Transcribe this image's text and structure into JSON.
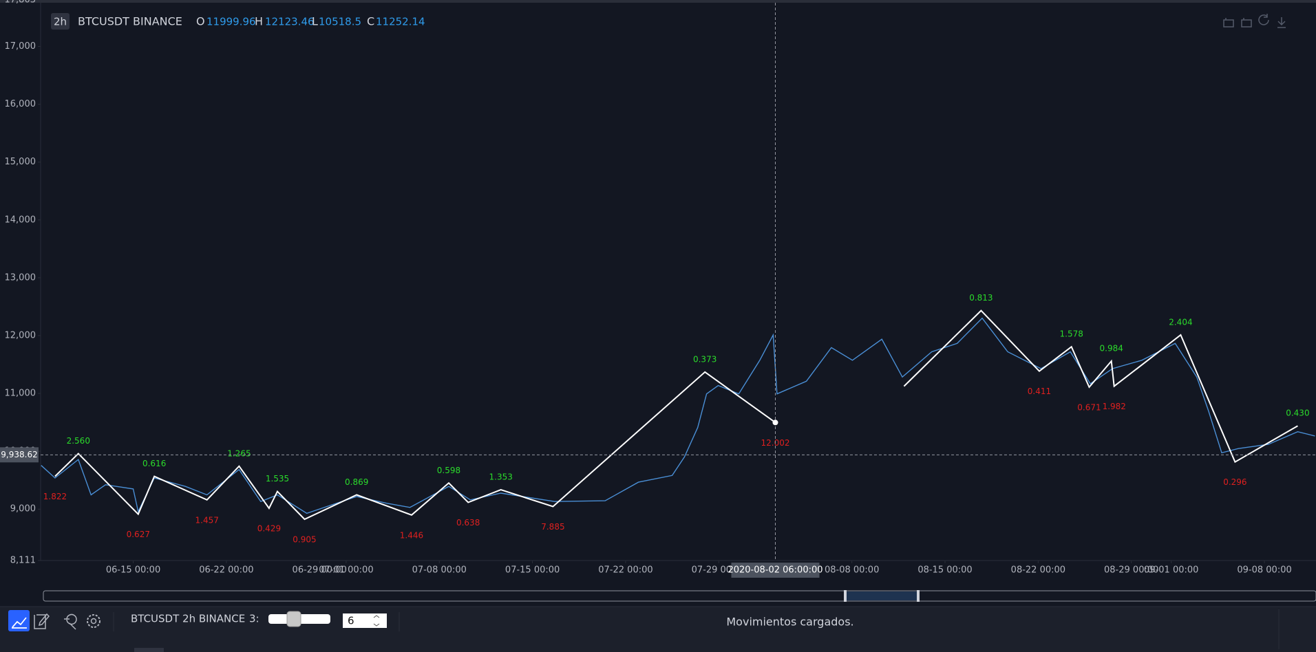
{
  "header": {
    "interval": "2h",
    "symbol": "BTCUSDT BINANCE",
    "ohlc": [
      {
        "key": "O",
        "value": 11999.96
      },
      {
        "key": "H",
        "value": 12123.46
      },
      {
        "key": "L",
        "value": 10518.5
      },
      {
        "key": "C",
        "value": 11252.14
      }
    ]
  },
  "chart_data": {
    "type": "line",
    "xlim": [
      "2020-06-08 01:00",
      "2020-09-11 21:00"
    ],
    "ylim": [
      8111,
      17803
    ],
    "xticks": [
      {
        "value": "2020-06-15 00:00",
        "label": "06-15 00:00"
      },
      {
        "value": "2020-06-22 00:00",
        "label": "06-22 00:00"
      },
      {
        "value": "2020-06-29 00:00",
        "label": "06-29 00:00"
      },
      {
        "value": "2020-07-01 00:00",
        "label": "07-01 00:00"
      },
      {
        "value": "2020-07-08 00:00",
        "label": "07-08 00:00"
      },
      {
        "value": "2020-07-15 00:00",
        "label": "07-15 00:00"
      },
      {
        "value": "2020-07-22 00:00",
        "label": "07-22 00:00"
      },
      {
        "value": "2020-07-29 00:00",
        "label": "07-29 00:00"
      },
      {
        "value": "2020-08-08 00:00",
        "label": "08-08 00:00"
      },
      {
        "value": "2020-08-15 00:00",
        "label": "08-15 00:00"
      },
      {
        "value": "2020-08-22 00:00",
        "label": "08-22 00:00"
      },
      {
        "value": "2020-08-29 00:00",
        "label": "08-29 00:00"
      },
      {
        "value": "2020-09-01 00:00",
        "label": "09-01 00:00"
      },
      {
        "value": "2020-09-08 00:00",
        "label": "09-08 00:00"
      }
    ],
    "yticks": [
      {
        "value": 8111,
        "label": "8,111"
      },
      {
        "value": 9000,
        "label": "9,000"
      },
      {
        "value": 10000,
        "label": "10,000"
      },
      {
        "value": 11000,
        "label": "11,000"
      },
      {
        "value": 12000,
        "label": "12,000"
      },
      {
        "value": 13000,
        "label": "13,000"
      },
      {
        "value": 14000,
        "label": "14,000"
      },
      {
        "value": 15000,
        "label": "15,000"
      },
      {
        "value": 16000,
        "label": "16,000"
      },
      {
        "value": 17000,
        "label": "17,000"
      },
      {
        "value": 17803,
        "label": "17,803"
      }
    ],
    "grid": false,
    "crosshair": {
      "x": "2020-08-02 06:00:00",
      "y": {
        "value": 9938.62,
        "label": "9,938.62"
      }
    },
    "series": [
      {
        "color": "#4a8fd6",
        "x": [
          "2020-06-08 02:00",
          "2020-06-09 03:00",
          "2020-06-10 21:00",
          "2020-06-11 20:00",
          "2020-06-12 22:00",
          "2020-06-15 00:00",
          "2020-06-15 09:00",
          "2020-06-16 14:00",
          "2020-06-18 22:00",
          "2020-06-20 13:00",
          "2020-06-22 23:00",
          "2020-06-24 14:00",
          "2020-06-25 20:00",
          "2020-06-28 01:00",
          "2020-07-01 19:00",
          "2020-07-04 01:00",
          "2020-07-05 19:00",
          "2020-07-08 17:00",
          "2020-07-10 08:00",
          "2020-07-12 15:00",
          "2020-07-16 16:00",
          "2020-07-20 11:00",
          "2020-07-22 23:00",
          "2020-07-25 12:00",
          "2020-07-26 10:00",
          "2020-07-27 10:00",
          "2020-07-28 02:00",
          "2020-07-28 23:00",
          "2020-07-30 12:00",
          "2020-08-01 02:00",
          "2020-08-02 02:00",
          "2020-08-02 09:00",
          "2020-08-04 14:00",
          "2020-08-06 11:00",
          "2020-08-08 01:00",
          "2020-08-10 06:00",
          "2020-08-11 19:00",
          "2020-08-14 00:00",
          "2020-08-15 22:00",
          "2020-08-17 19:00",
          "2020-08-19 17:00",
          "2020-08-22 05:00",
          "2020-08-24 10:00",
          "2020-08-25 22:00",
          "2020-08-27 14:00",
          "2020-08-29 19:00",
          "2020-09-01 07:00",
          "2020-09-02 22:00",
          "2020-09-03 19:00",
          "2020-09-04 19:00",
          "2020-09-06 01:00",
          "2020-09-08 07:00",
          "2020-09-10 12:00",
          "2020-09-11 19:00"
        ],
        "values": [
          9756,
          9538,
          9858,
          9247,
          9422,
          9349,
          8956,
          9538,
          9393,
          9247,
          9684,
          9131,
          9247,
          8927,
          9218,
          9102,
          9029,
          9393,
          9160,
          9276,
          9131,
          9145,
          9465,
          9582,
          9902,
          10411,
          10993,
          11138,
          10993,
          11574,
          12011,
          10993,
          11211,
          11793,
          11574,
          11938,
          11284,
          11720,
          11865,
          12302,
          11720,
          11429,
          11720,
          11167,
          11429,
          11574,
          11865,
          11284,
          10702,
          9975,
          10047,
          10120,
          10338,
          10265
        ]
      },
      {
        "color": "#ffffff",
        "x": [
          "2020-06-09 03:00",
          "2020-06-10 21:00",
          "2020-06-15 09:00",
          "2020-06-16 14:00",
          "2020-06-20 13:00",
          "2020-06-22 23:00",
          "2020-06-25 05:00",
          "2020-06-25 20:00",
          "2020-06-27 21:00",
          "2020-07-01 19:00",
          "2020-07-05 22:00",
          "2020-07-08 17:00",
          "2020-07-10 04:00",
          "2020-07-12 15:00",
          "2020-07-16 13:00",
          "2020-07-27 23:00",
          "2020-08-02 06:00",
          "2020-08-07 00:00",
          "2020-08-11 22:00",
          "2020-08-17 17:00",
          "2020-08-22 02:00",
          "2020-08-24 12:00",
          "2020-08-25 20:00",
          "2020-08-27 12:00",
          "2020-08-27 17:00",
          "2020-09-01 17:00",
          "2020-09-05 19:00",
          "2020-09-10 12:00"
        ],
        "values": [
          9567,
          9960,
          8913,
          9567,
          9160,
          9742,
          9015,
          9305,
          8825,
          9247,
          8898,
          9451,
          9116,
          9335,
          9044,
          11371,
          10498,
          null,
          11124,
          12433,
          11385,
          11807,
          11109,
          11560,
          11124,
          12011,
          9815,
          10440
        ],
        "labels": [
          "1.822",
          "2.560",
          "0.627",
          "0.616",
          "1.457",
          "1.265",
          "0.429",
          "1.535",
          "0.905",
          "0.869",
          "1.446",
          "0.598",
          "0.638",
          "1.353",
          "7.885",
          "0.373",
          "12.002",
          null,
          null,
          "0.813",
          "0.411",
          "1.578",
          "0.671",
          "0.984",
          "1.982",
          "2.404",
          "0.296",
          "0.430"
        ]
      }
    ]
  },
  "toolbar": {
    "symbol": "BTCUSDT 2h BINANCE",
    "depth_label": "3:",
    "depth": 6,
    "status": "Movimientos cargados."
  }
}
